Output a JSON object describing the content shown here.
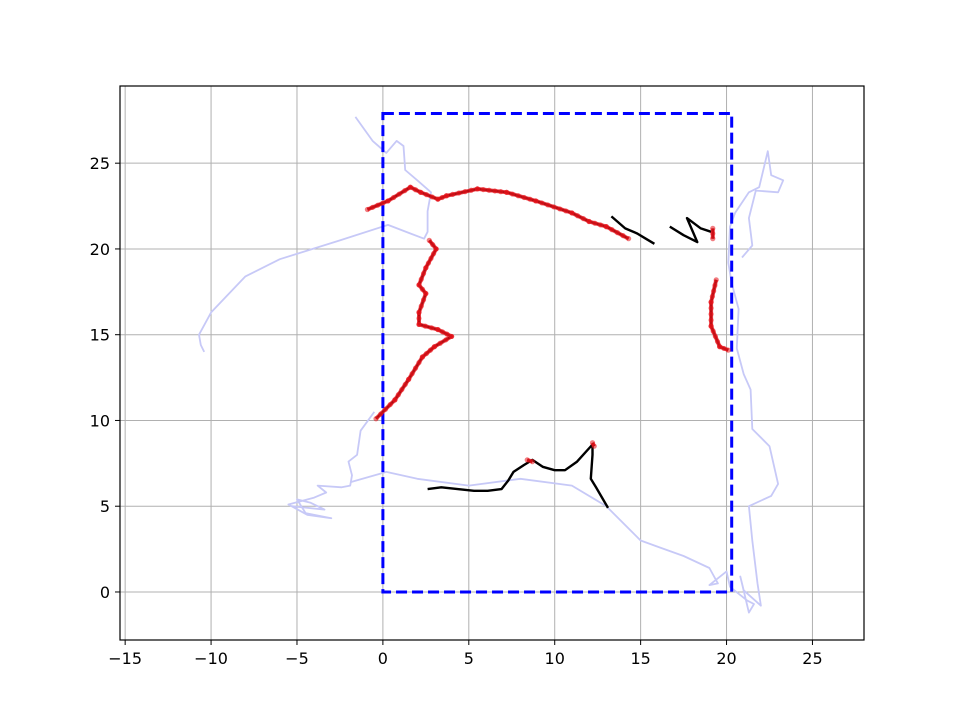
{
  "chart_data": {
    "type": "line",
    "title": "",
    "xlabel": "",
    "ylabel": "",
    "xlim": [
      -15.3,
      28.0
    ],
    "ylim": [
      -2.8,
      29.5
    ],
    "xticks": [
      -15,
      -10,
      -5,
      0,
      5,
      10,
      15,
      20,
      25
    ],
    "yticks": [
      0,
      5,
      10,
      15,
      20,
      25
    ],
    "xtick_labels": [
      "−15",
      "−10",
      "−5",
      "0",
      "5",
      "10",
      "15",
      "20",
      "25"
    ],
    "ytick_labels": [
      "0",
      "5",
      "10",
      "15",
      "20",
      "25"
    ],
    "grid": true,
    "legend": null,
    "colors": {
      "trajectory": "#c7c9f7",
      "boundary": "#0000ff",
      "segments": "#000000",
      "highlight": "#e8121a",
      "grid": "#b0b0b0"
    },
    "boundary_box": {
      "x": [
        0,
        20.3
      ],
      "y": [
        0,
        27.9
      ]
    },
    "trajectory": [
      [
        -1.6,
        27.7
      ],
      [
        -0.6,
        26.3
      ],
      [
        0.2,
        25.6
      ],
      [
        0.8,
        26.3
      ],
      [
        1.2,
        26.0
      ],
      [
        1.3,
        24.6
      ],
      [
        2.0,
        24.0
      ],
      [
        2.8,
        23.3
      ],
      [
        2.6,
        22.2
      ],
      [
        2.6,
        21.0
      ],
      [
        2.4,
        20.6
      ],
      [
        1.6,
        20.9
      ],
      [
        0.3,
        21.4
      ],
      [
        -2.5,
        20.5
      ],
      [
        -6.0,
        19.4
      ],
      [
        -8.0,
        18.4
      ],
      [
        -10.0,
        16.3
      ],
      [
        -10.7,
        15.0
      ],
      [
        -10.6,
        14.4
      ],
      [
        -10.4,
        14.0
      ]
    ],
    "trajectory_2": [
      [
        -0.5,
        10.5
      ],
      [
        -1.3,
        9.4
      ],
      [
        -1.5,
        8.0
      ],
      [
        -2.0,
        7.6
      ],
      [
        -1.8,
        6.8
      ],
      [
        -1.9,
        6.2
      ],
      [
        -2.4,
        6.1
      ],
      [
        -3.8,
        6.2
      ],
      [
        -3.3,
        5.8
      ],
      [
        -4.0,
        5.5
      ],
      [
        -5.5,
        5.1
      ],
      [
        -4.4,
        4.5
      ],
      [
        -3.0,
        4.3
      ],
      [
        -4.5,
        4.6
      ],
      [
        -5.0,
        5.4
      ],
      [
        -4.2,
        5.2
      ],
      [
        -3.4,
        4.8
      ],
      [
        -5.3,
        5.0
      ]
    ],
    "trajectory_3": [
      [
        -1.9,
        6.4
      ],
      [
        0.2,
        7.0
      ],
      [
        2.0,
        6.6
      ],
      [
        5.0,
        6.2
      ],
      [
        8.0,
        6.6
      ],
      [
        11.0,
        6.2
      ],
      [
        13.0,
        5.0
      ],
      [
        14.5,
        3.5
      ],
      [
        15.0,
        3.0
      ],
      [
        16.1,
        2.6
      ],
      [
        17.5,
        2.1
      ],
      [
        19.0,
        1.4
      ],
      [
        19.5,
        0.5
      ],
      [
        19.0,
        0.4
      ],
      [
        20.0,
        1.2
      ],
      [
        20.2,
        0.3
      ],
      [
        21.2,
        -0.5
      ],
      [
        21.6,
        -0.7
      ],
      [
        21.3,
        -1.2
      ],
      [
        20.8,
        0.9
      ],
      [
        21.0,
        0.1
      ],
      [
        22.0,
        -0.8
      ],
      [
        21.8,
        0.5
      ],
      [
        21.5,
        3.0
      ],
      [
        21.3,
        5.0
      ],
      [
        22.6,
        5.6
      ],
      [
        23.0,
        6.3
      ],
      [
        22.5,
        8.5
      ],
      [
        21.5,
        9.5
      ],
      [
        21.4,
        11.8
      ],
      [
        21.0,
        12.7
      ],
      [
        20.6,
        14.2
      ],
      [
        20.7,
        16.5
      ],
      [
        20.3,
        18.0
      ],
      [
        20.1,
        19.2
      ],
      [
        20.2,
        21.3
      ],
      [
        20.5,
        22.1
      ],
      [
        21.3,
        23.3
      ],
      [
        21.9,
        23.6
      ],
      [
        22.4,
        25.7
      ],
      [
        22.6,
        24.3
      ],
      [
        23.3,
        24.0
      ],
      [
        23.0,
        23.3
      ],
      [
        21.7,
        23.4
      ],
      [
        21.3,
        21.8
      ],
      [
        21.5,
        20.2
      ],
      [
        20.9,
        19.5
      ]
    ],
    "segments": [
      {
        "points": [
          [
            -0.9,
            22.3
          ],
          [
            0.3,
            22.8
          ],
          [
            1.6,
            23.6
          ],
          [
            2.2,
            23.3
          ],
          [
            3.2,
            22.9
          ],
          [
            3.7,
            23.1
          ],
          [
            5.5,
            23.5
          ],
          [
            7.2,
            23.3
          ],
          [
            8.9,
            22.8
          ],
          [
            11.0,
            22.1
          ],
          [
            12.0,
            21.6
          ],
          [
            13.0,
            21.3
          ],
          [
            14.3,
            20.6
          ]
        ],
        "highlighted": true
      },
      {
        "points": [
          [
            13.3,
            21.9
          ],
          [
            14.1,
            21.2
          ],
          [
            14.8,
            20.9
          ],
          [
            15.3,
            20.6
          ],
          [
            15.8,
            20.3
          ]
        ],
        "highlighted": false
      },
      {
        "points": [
          [
            16.7,
            21.3
          ],
          [
            17.5,
            20.8
          ],
          [
            18.3,
            20.4
          ],
          [
            17.7,
            21.8
          ],
          [
            18.5,
            21.2
          ],
          [
            19.1,
            21.0
          ]
        ],
        "highlighted": false
      },
      {
        "points": [
          [
            2.7,
            20.5
          ],
          [
            3.1,
            20.0
          ],
          [
            2.5,
            18.9
          ],
          [
            2.1,
            17.9
          ],
          [
            2.5,
            17.4
          ],
          [
            2.1,
            16.3
          ],
          [
            2.1,
            15.6
          ],
          [
            3.2,
            15.3
          ],
          [
            4.0,
            14.9
          ],
          [
            3.0,
            14.3
          ],
          [
            2.3,
            13.7
          ],
          [
            1.5,
            12.4
          ],
          [
            0.7,
            11.2
          ],
          [
            -0.4,
            10.1
          ]
        ],
        "highlighted": true
      },
      {
        "points": [
          [
            19.4,
            18.2
          ],
          [
            19.1,
            16.9
          ],
          [
            19.1,
            15.5
          ],
          [
            19.6,
            14.3
          ],
          [
            20.1,
            14.1
          ]
        ],
        "highlighted": true
      },
      {
        "points": [
          [
            19.2,
            21.2
          ],
          [
            19.2,
            20.6
          ]
        ],
        "highlighted": true
      },
      {
        "points": [
          [
            2.6,
            6.0
          ],
          [
            3.4,
            6.1
          ],
          [
            5.3,
            5.9
          ],
          [
            6.1,
            5.9
          ],
          [
            6.9,
            6.0
          ],
          [
            7.3,
            6.5
          ],
          [
            7.6,
            7.0
          ],
          [
            8.2,
            7.4
          ],
          [
            8.7,
            7.7
          ],
          [
            9.3,
            7.3
          ],
          [
            10.0,
            7.1
          ],
          [
            10.6,
            7.1
          ],
          [
            11.3,
            7.6
          ],
          [
            12.2,
            8.6
          ],
          [
            12.2,
            8.0
          ],
          [
            12.1,
            6.6
          ],
          [
            12.4,
            6.1
          ],
          [
            13.1,
            4.9
          ]
        ],
        "highlighted": false
      },
      {
        "points": [
          [
            8.4,
            7.7
          ],
          [
            8.7,
            7.6
          ]
        ],
        "highlighted": true
      },
      {
        "points": [
          [
            12.2,
            8.7
          ],
          [
            12.3,
            8.5
          ]
        ],
        "highlighted": true
      }
    ]
  }
}
